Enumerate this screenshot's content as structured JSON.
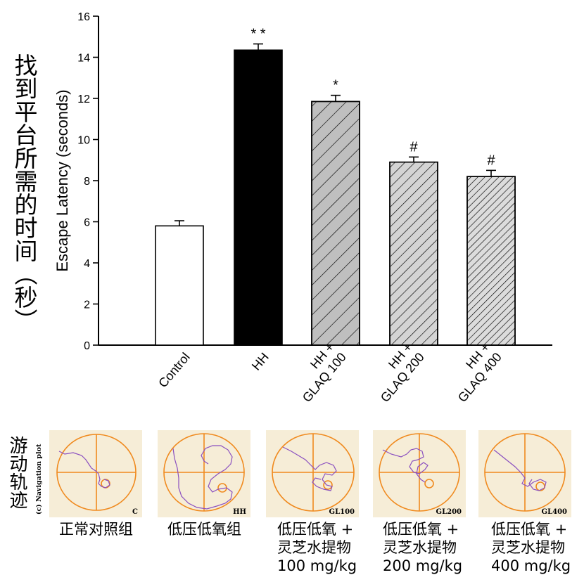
{
  "chart_data": {
    "type": "bar",
    "ylabel": "Escape Latency (seconds)",
    "ylim": [
      0,
      16
    ],
    "yticks": [
      0,
      2,
      4,
      6,
      8,
      10,
      12,
      14,
      16
    ],
    "categories": [
      "Control",
      "HH",
      "HH + GLAQ 100",
      "HH + GLAQ 200",
      "HH + GLAQ 400"
    ],
    "category_lines": [
      [
        "Control"
      ],
      [
        "HH"
      ],
      [
        "HH +",
        "GLAQ 100"
      ],
      [
        "HH +",
        "GLAQ 200"
      ],
      [
        "HH +",
        "GLAQ 400"
      ]
    ],
    "values": [
      5.8,
      14.35,
      11.85,
      8.9,
      8.2
    ],
    "errors": [
      0.25,
      0.3,
      0.3,
      0.25,
      0.3
    ],
    "annotations": [
      "",
      "* *",
      "*",
      "#",
      "#"
    ],
    "fills": [
      "#ffffff",
      "#000000",
      "#bfbfbf",
      "#d4d4d4",
      "#dcdcdc"
    ],
    "hatch": [
      "none",
      "none",
      "sparse",
      "medium",
      "dense"
    ]
  },
  "cn_ylabel": "找到平台所需的时间（秒）",
  "navigation": {
    "side_label": "游动轨迹",
    "rotated_label": "(c) Navigation plot",
    "panel_bg": "#f6edd7",
    "circle_color": "#f08a1e",
    "path_color": "#8a4fc0",
    "panels": [
      {
        "code": "C",
        "caption": [
          "正常对照组"
        ]
      },
      {
        "code": "HH",
        "caption": [
          "低压低氧组"
        ]
      },
      {
        "code": "GL100",
        "caption": [
          "低压低氧 +",
          "灵芝水提物",
          "100 mg/kg"
        ]
      },
      {
        "code": "GL200",
        "caption": [
          "低压低氧 +",
          "灵芝水提物",
          "200 mg/kg"
        ]
      },
      {
        "code": "GL400",
        "caption": [
          "低压低氧 +",
          "灵芝水提物",
          "400 mg/kg"
        ]
      }
    ]
  }
}
